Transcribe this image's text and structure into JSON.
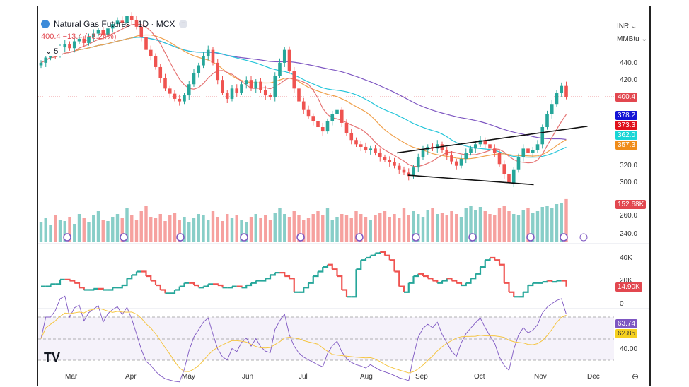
{
  "header": {
    "title": "Natural Gas Futures · 1D · MCX",
    "change": "400.4 −13.4 (−3.24%)",
    "indicators_collapsed": "5",
    "currency": "INR",
    "unit": "MMBtu"
  },
  "colors": {
    "up": "#26a69a",
    "down": "#ef5350",
    "ma200": "#7e57c2",
    "ma100": "#26c6da",
    "ma50": "#f0a04b",
    "ma20": "#e57373",
    "rsi": "#7e57c2",
    "rsi_ma": "#f5c542"
  },
  "labels": {
    "price": "400.4",
    "ma_blue": "378.2",
    "ma_red": "373.3",
    "ma_cyan": "362.0",
    "ma_orange": "357.3",
    "volume": "152.68K",
    "pane2": "14.90K",
    "rsi": "63.74",
    "rsi_ma": "62.85"
  },
  "label_colors": {
    "price": "#e2474f",
    "ma_blue": "#1414d6",
    "ma_red": "#e0121b",
    "ma_cyan": "#1ad6d6",
    "ma_orange": "#f08c1a",
    "volume": "#e2474f",
    "pane2": "#e2474f",
    "rsi": "#7e57c2",
    "rsi_ma": "#f5d020"
  },
  "price_ticks": [
    "440.0",
    "420.0",
    "320.0",
    "300.0",
    "260.0",
    "240.0"
  ],
  "pane2_ticks": [
    "40K",
    "20K",
    "0"
  ],
  "rsi_ticks": [
    "40.00"
  ],
  "months": [
    "Mar",
    "Apr",
    "May",
    "Jun",
    "Jul",
    "Aug",
    "Sep",
    "Oct",
    "Nov",
    "Dec"
  ],
  "chart_data": {
    "type": "candlestick",
    "closes": [
      440,
      446,
      452,
      449,
      458,
      462,
      457,
      465,
      468,
      463,
      470,
      474,
      478,
      472,
      480,
      485,
      489,
      486,
      495,
      490,
      482,
      470,
      455,
      448,
      435,
      422,
      410,
      404,
      398,
      395,
      402,
      415,
      428,
      437,
      448,
      455,
      440,
      420,
      405,
      398,
      410,
      405,
      415,
      420,
      410,
      418,
      408,
      402,
      400,
      425,
      440,
      455,
      430,
      410,
      395,
      385,
      378,
      372,
      365,
      360,
      372,
      380,
      385,
      370,
      358,
      350,
      345,
      342,
      338,
      340,
      335,
      330,
      327,
      324,
      320,
      315,
      312,
      308,
      318,
      330,
      338,
      342,
      340,
      345,
      338,
      332,
      325,
      320,
      328,
      335,
      340,
      345,
      350,
      345,
      340,
      335,
      322,
      310,
      300,
      315,
      330,
      340,
      335,
      338,
      345,
      365,
      380,
      392,
      405,
      413,
      400.4
    ],
    "volume_k": [
      70,
      85,
      60,
      95,
      80,
      75,
      90,
      65,
      100,
      85,
      70,
      95,
      110,
      80,
      75,
      90,
      100,
      85,
      120,
      95,
      80,
      110,
      130,
      90,
      85,
      100,
      75,
      95,
      105,
      80,
      90,
      70,
      85,
      100,
      95,
      80,
      110,
      90,
      75,
      100,
      85,
      95,
      80,
      70,
      90,
      100,
      85,
      95,
      80,
      105,
      120,
      100,
      90,
      110,
      95,
      80,
      85,
      100,
      110,
      95,
      120,
      80,
      90,
      100,
      95,
      85,
      110,
      100,
      90,
      80,
      95,
      105,
      110,
      90,
      100,
      85,
      120,
      95,
      110,
      100,
      90,
      115,
      120,
      100,
      105,
      95,
      110,
      100,
      90,
      120,
      130,
      115,
      125,
      110,
      100,
      95,
      120,
      130,
      110,
      100,
      95,
      115,
      120,
      105,
      110,
      125,
      130,
      120,
      135,
      140,
      152.68
    ],
    "pane2_k": [
      15,
      15,
      17,
      17,
      21,
      21,
      20,
      18,
      14,
      12,
      12,
      13,
      13,
      12,
      12,
      14,
      14,
      16,
      22,
      25,
      28,
      28,
      24,
      20,
      16,
      12,
      9,
      9,
      12,
      15,
      18,
      18,
      16,
      14,
      15,
      17,
      17,
      16,
      14,
      14,
      15,
      15,
      14,
      16,
      18,
      20,
      20,
      22,
      25,
      27,
      27,
      24,
      22,
      10,
      10,
      14,
      18,
      24,
      28,
      32,
      34,
      30,
      24,
      12,
      6,
      6,
      30,
      38,
      40,
      42,
      44,
      45,
      42,
      38,
      28,
      15,
      10,
      18,
      24,
      26,
      24,
      22,
      20,
      18,
      20,
      22,
      20,
      18,
      16,
      18,
      22,
      26,
      32,
      38,
      40,
      38,
      34,
      18,
      10,
      6,
      6,
      10,
      16,
      18,
      18,
      19,
      20,
      19,
      20,
      20,
      14.9
    ],
    "trendlines": [
      {
        "from": {
          "date": "Aug 18",
          "price": 335
        },
        "to": {
          "date": "Nov 28",
          "price": 366
        }
      },
      {
        "from": {
          "date": "Aug 24",
          "price": 309
        },
        "to": {
          "date": "Oct 28",
          "price": 298
        }
      }
    ],
    "price_axis": {
      "visible_range": [
        230,
        500
      ]
    },
    "rsi_levels": [
      70,
      50,
      30
    ]
  }
}
